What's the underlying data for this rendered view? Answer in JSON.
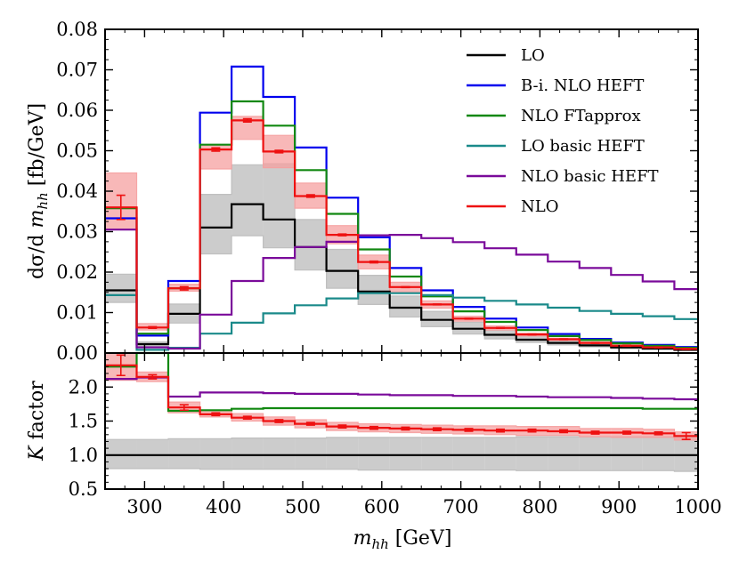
{
  "chart_data": {
    "type": "line",
    "step": "histogram",
    "bin_edges": [
      250,
      290,
      330,
      370,
      410,
      450,
      490,
      530,
      570,
      610,
      650,
      690,
      730,
      770,
      810,
      850,
      890,
      930,
      970,
      1000
    ],
    "xlim": [
      250,
      1000
    ],
    "x_ticks": [
      300,
      400,
      500,
      600,
      700,
      800,
      900,
      1000
    ],
    "xlabel": "m_hh [GeV]",
    "panels": {
      "main": {
        "ylabel": "dσ/d m_hh [fb/GeV]",
        "ylim": [
          0,
          0.08
        ],
        "y_ticks": [
          "0.00",
          "0.01",
          "0.02",
          "0.03",
          "0.04",
          "0.05",
          "0.06",
          "0.07",
          "0.08"
        ],
        "series": [
          {
            "name": "LO",
            "color": "#000000",
            "values": [
              0.0155,
              0.0022,
              0.0097,
              0.031,
              0.0368,
              0.033,
              0.0262,
              0.0203,
              0.0152,
              0.0112,
              0.0082,
              0.006,
              0.0045,
              0.0033,
              0.0025,
              0.0019,
              0.0014,
              0.0011,
              0.0008
            ]
          },
          {
            "name": "B-i. NLO HEFT",
            "color": "#0000ee",
            "values": [
              0.0333,
              0.0043,
              0.0178,
              0.0594,
              0.0708,
              0.0633,
              0.0508,
              0.0384,
              0.0286,
              0.021,
              0.0155,
              0.0114,
              0.0085,
              0.0063,
              0.0047,
              0.0035,
              0.0026,
              0.002,
              0.0015
            ]
          },
          {
            "name": "NLO FTapprox",
            "color": "#118811",
            "values": [
              0.0358,
              0.0048,
              0.016,
              0.0515,
              0.0622,
              0.0562,
              0.0452,
              0.0344,
              0.0256,
              0.0189,
              0.014,
              0.0103,
              0.0077,
              0.0057,
              0.0042,
              0.0032,
              0.0024,
              0.0018,
              0.0013
            ]
          },
          {
            "name": "LO basic HEFT",
            "color": "#1a8a8a",
            "values": [
              0.0143,
              0.0008,
              0.0013,
              0.0048,
              0.0075,
              0.0098,
              0.0118,
              0.0135,
              0.0148,
              0.0148,
              0.0143,
              0.0137,
              0.0129,
              0.012,
              0.0112,
              0.0104,
              0.0097,
              0.0091,
              0.0084
            ]
          },
          {
            "name": "NLO basic HEFT",
            "color": "#7a0a9a",
            "values": [
              0.0305,
              0.0014,
              0.0011,
              0.0095,
              0.0178,
              0.0235,
              0.0262,
              0.0275,
              0.0291,
              0.0292,
              0.0284,
              0.0274,
              0.0259,
              0.0243,
              0.0226,
              0.021,
              0.0193,
              0.0177,
              0.0158
            ]
          },
          {
            "name": "NLO",
            "color": "#ee1111",
            "values": [
              0.036,
              0.0063,
              0.016,
              0.0503,
              0.0575,
              0.0498,
              0.0388,
              0.0292,
              0.0225,
              0.0163,
              0.012,
              0.0085,
              0.0062,
              0.0046,
              0.0034,
              0.0025,
              0.0018,
              0.0014,
              0.001
            ]
          }
        ],
        "bands": [
          {
            "of": "LO",
            "color": "#bbbbbb",
            "low": [
              0.0125,
              0.0017,
              0.0074,
              0.0245,
              0.029,
              0.026,
              0.0205,
              0.016,
              0.012,
              0.0089,
              0.0065,
              0.0047,
              0.0035,
              0.0026,
              0.002,
              0.0015,
              0.0011,
              0.0009,
              0.0006
            ],
            "high": [
              0.0195,
              0.0028,
              0.0121,
              0.0392,
              0.0465,
              0.0468,
              0.033,
              0.0256,
              0.0192,
              0.0141,
              0.0103,
              0.0076,
              0.0057,
              0.0042,
              0.0031,
              0.0024,
              0.0018,
              0.0014,
              0.001
            ]
          },
          {
            "of": "NLO",
            "color": "#f5a0a0",
            "low": [
              0.0305,
              0.0057,
              0.0153,
              0.0455,
              0.0528,
              0.0458,
              0.0358,
              0.027,
              0.0208,
              0.0151,
              0.0111,
              0.0079,
              0.0057,
              0.0042,
              0.0031,
              0.0023,
              0.0017,
              0.0013,
              0.0009
            ],
            "high": [
              0.0445,
              0.0073,
              0.017,
              0.0515,
              0.0585,
              0.0538,
              0.042,
              0.0315,
              0.0242,
              0.0175,
              0.0129,
              0.0091,
              0.0067,
              0.0049,
              0.0037,
              0.0027,
              0.002,
              0.0015,
              0.0011
            ]
          }
        ],
        "error_bars": {
          "of": "NLO",
          "color": "#ee1111",
          "err": [
            0.003,
            0.0002,
            0.0004,
            0.0004,
            0.0004,
            0.0003,
            0.0003,
            0.0002,
            0.0002,
            0.0001,
            0.0001,
            0.0001,
            0.0001,
            0.0001,
            0.0001,
            0.0001,
            0.0001,
            0.0001,
            0.0001
          ]
        }
      },
      "ratio": {
        "ylabel": "K factor",
        "ylim": [
          0.5,
          2.5
        ],
        "y_ticks": [
          "0.5",
          "1.0",
          "1.5",
          "2.0"
        ],
        "series": [
          {
            "name": "LO",
            "color": "#000000",
            "values": [
              1.0,
              1.0,
              1.0,
              1.0,
              1.0,
              1.0,
              1.0,
              1.0,
              1.0,
              1.0,
              1.0,
              1.0,
              1.0,
              1.0,
              1.0,
              1.0,
              1.0,
              1.0,
              1.0
            ]
          },
          {
            "name": "NLO FTapprox",
            "color": "#118811",
            "values": [
              2.3,
              2.85,
              1.65,
              1.66,
              1.68,
              1.69,
              1.69,
              1.69,
              1.69,
              1.69,
              1.69,
              1.69,
              1.69,
              1.69,
              1.69,
              1.69,
              1.69,
              1.68,
              1.68
            ]
          },
          {
            "name": "NLO basic HEFT",
            "color": "#7a0a9a",
            "values": [
              2.12,
              2.14,
              1.86,
              1.92,
              1.92,
              1.91,
              1.9,
              1.9,
              1.89,
              1.88,
              1.88,
              1.87,
              1.87,
              1.86,
              1.85,
              1.85,
              1.84,
              1.83,
              1.82
            ]
          },
          {
            "name": "NLO",
            "color": "#ee1111",
            "values": [
              2.32,
              2.15,
              1.7,
              1.6,
              1.55,
              1.5,
              1.46,
              1.42,
              1.4,
              1.39,
              1.38,
              1.37,
              1.36,
              1.36,
              1.35,
              1.33,
              1.33,
              1.32,
              1.28
            ]
          }
        ],
        "bands": [
          {
            "of": "LO",
            "color": "#bbbbbb",
            "low": [
              0.8,
              0.8,
              0.8,
              0.79,
              0.79,
              0.79,
              0.79,
              0.79,
              0.78,
              0.78,
              0.78,
              0.78,
              0.78,
              0.77,
              0.77,
              0.77,
              0.77,
              0.77,
              0.76
            ],
            "high": [
              1.23,
              1.23,
              1.24,
              1.24,
              1.25,
              1.25,
              1.25,
              1.26,
              1.26,
              1.26,
              1.26,
              1.26,
              1.26,
              1.27,
              1.27,
              1.27,
              1.27,
              1.27,
              1.27
            ]
          },
          {
            "of": "NLO",
            "color": "#f5a0a0",
            "low": [
              2.1,
              2.08,
              1.62,
              1.56,
              1.5,
              1.44,
              1.4,
              1.36,
              1.34,
              1.33,
              1.32,
              1.31,
              1.3,
              1.29,
              1.29,
              1.27,
              1.26,
              1.26,
              1.22
            ],
            "high": [
              2.55,
              2.22,
              1.78,
              1.66,
              1.61,
              1.56,
              1.52,
              1.48,
              1.46,
              1.45,
              1.44,
              1.43,
              1.43,
              1.42,
              1.42,
              1.39,
              1.39,
              1.38,
              1.34
            ]
          }
        ],
        "error_bars": {
          "of": "NLO",
          "color": "#ee1111",
          "err": [
            0.15,
            0.03,
            0.04,
            0.02,
            0.02,
            0.02,
            0.02,
            0.02,
            0.02,
            0.02,
            0.02,
            0.02,
            0.02,
            0.02,
            0.02,
            0.02,
            0.02,
            0.02,
            0.05
          ]
        }
      }
    },
    "legend": {
      "placement": "top-right",
      "entries": [
        "LO",
        "B-i. NLO HEFT",
        "NLO FTapprox",
        "LO basic HEFT",
        "NLO basic HEFT",
        "NLO"
      ]
    }
  }
}
